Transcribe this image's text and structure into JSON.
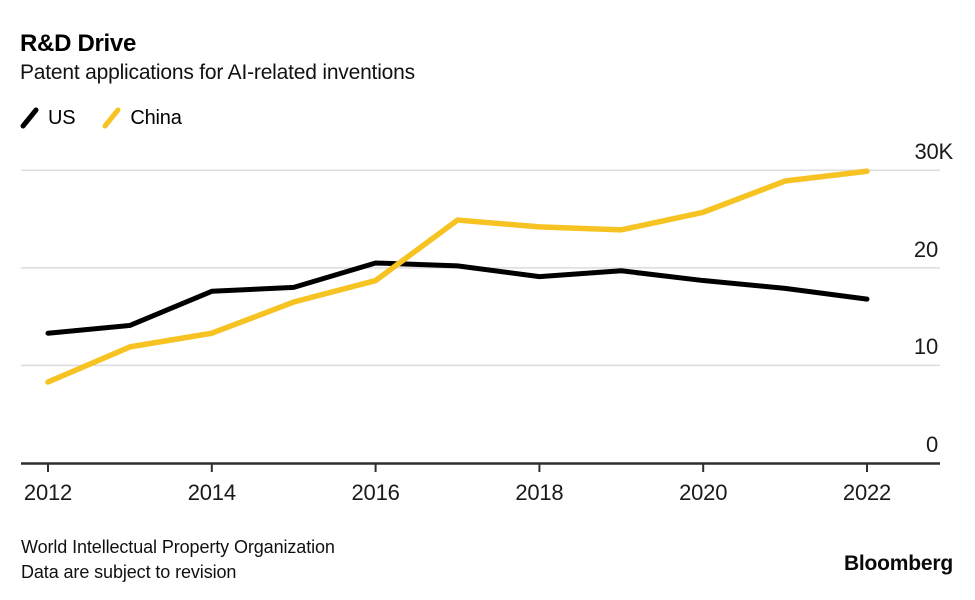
{
  "header": {
    "title": "R&D Drive",
    "subtitle": "Patent applications for AI-related inventions"
  },
  "legend": [
    {
      "label": "US",
      "color": "#000000",
      "swatch": "diagonal-line"
    },
    {
      "label": "China",
      "color": "#F6C323",
      "swatch": "diagonal-line"
    }
  ],
  "colors": {
    "background": "#ffffff",
    "gridline": "#dcdcdc",
    "axis": "#2e2e2e",
    "us_line": "#000000",
    "china_line": "#F6C323"
  },
  "source": {
    "line1": "World Intellectual Property Organization",
    "line2": "Data are subject to revision"
  },
  "brand": "Bloomberg",
  "chart_data": {
    "type": "line",
    "title": "R&D Drive",
    "subtitle": "Patent applications for AI-related inventions",
    "x": [
      2012,
      2013,
      2014,
      2015,
      2016,
      2017,
      2018,
      2019,
      2020,
      2021,
      2022
    ],
    "series": [
      {
        "name": "US",
        "color": "#000000",
        "values_thousands": [
          13.3,
          14.1,
          17.6,
          18.0,
          20.5,
          20.2,
          19.1,
          19.7,
          18.7,
          17.9,
          16.8
        ]
      },
      {
        "name": "China",
        "color": "#F6C323",
        "values_thousands": [
          8.3,
          11.9,
          13.3,
          16.5,
          18.7,
          24.9,
          24.2,
          23.9,
          25.7,
          28.9,
          29.9
        ]
      }
    ],
    "xlabel": "",
    "ylabel": "",
    "ylim": [
      0,
      30
    ],
    "yticks": [
      {
        "value": 0,
        "label": "0"
      },
      {
        "value": 10,
        "label": "10"
      },
      {
        "value": 20,
        "label": "20"
      },
      {
        "value": 30,
        "label": "30K"
      }
    ],
    "xticks": [
      {
        "value": 2012,
        "label": "2012"
      },
      {
        "value": 2014,
        "label": "2014"
      },
      {
        "value": 2016,
        "label": "2016"
      },
      {
        "value": 2018,
        "label": "2018"
      },
      {
        "value": 2020,
        "label": "2020"
      },
      {
        "value": 2022,
        "label": "2022"
      }
    ],
    "grid": "horizontal",
    "legend_position": "top-left"
  }
}
